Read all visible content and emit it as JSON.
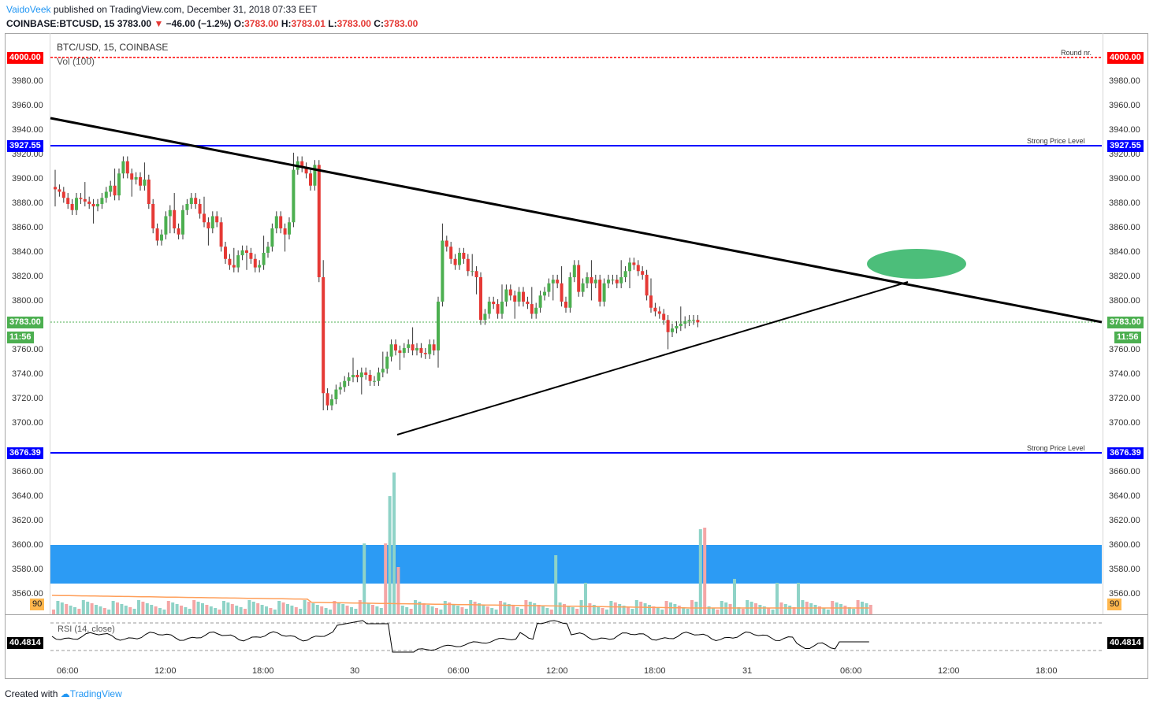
{
  "header": {
    "author": "VaidoVeek",
    "published": "published on TradingView.com, December 31, 2018 07:33 EET",
    "symbol_line": "COINBASE:BTCUSD, 15",
    "price": "3783.00",
    "change_arrow": "▼",
    "change": "−46.00 (−1.2%)",
    "o_label": "O:",
    "o_value": "3783.00",
    "h_label": "H:",
    "h_value": "3783.01",
    "l_label": "L:",
    "l_value": "3783.00",
    "c_label": "C:",
    "c_value": "3783.00"
  },
  "chart": {
    "title": "BTC/USD, 15, COINBASE",
    "volume_title": "Vol (100)",
    "rsi_title": "RSI (14, close)",
    "y_ticks": [
      "3980.00",
      "3960.00",
      "3940.00",
      "3920.00",
      "3900.00",
      "3880.00",
      "3860.00",
      "3840.00",
      "3820.00",
      "3800.00",
      "3760.00",
      "3740.00",
      "3720.00",
      "3700.00",
      "3660.00",
      "3640.00",
      "3620.00",
      "3600.00",
      "3580.00",
      "3560.00"
    ],
    "x_ticks": [
      "06:00",
      "12:00",
      "18:00",
      "30",
      "06:00",
      "12:00",
      "18:00",
      "31",
      "06:00",
      "12:00",
      "18:00"
    ],
    "tags": {
      "round": "4000.00",
      "strong_top": "3927.55",
      "current": "3783.00",
      "countdown": "11:56",
      "strong_bottom": "3676.39",
      "vol_ma": "90",
      "rsi_value": "40.4814"
    },
    "line_labels": {
      "round": "Round nr.",
      "strong_top": "Strong Price Level",
      "strong_bottom": "Strong Price Level"
    },
    "colors": {
      "up": "#4caf50",
      "down": "#e53935",
      "round_line": "#ff0000",
      "strong_line": "#0000ff",
      "zone": "#2196f3",
      "target": "#4cbe7a"
    }
  },
  "footer": {
    "created_with": "Created with",
    "brand": "TradingView"
  }
}
